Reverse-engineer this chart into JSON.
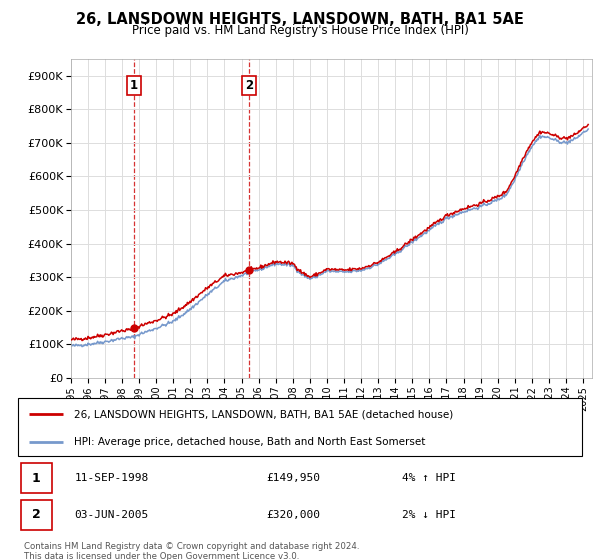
{
  "title": "26, LANSDOWN HEIGHTS, LANSDOWN, BATH, BA1 5AE",
  "subtitle": "Price paid vs. HM Land Registry's House Price Index (HPI)",
  "ylabel_ticks": [
    "£0",
    "£100K",
    "£200K",
    "£300K",
    "£400K",
    "£500K",
    "£600K",
    "£700K",
    "£800K",
    "£900K"
  ],
  "ytick_values": [
    0,
    100000,
    200000,
    300000,
    400000,
    500000,
    600000,
    700000,
    800000,
    900000
  ],
  "ylim": [
    0,
    950000
  ],
  "xlim_start": 1995.0,
  "xlim_end": 2025.5,
  "sale1_x": 1998.69,
  "sale1_y": 149950,
  "sale2_x": 2005.42,
  "sale2_y": 320000,
  "sale1_label": "11-SEP-1998",
  "sale1_price": "£149,950",
  "sale1_hpi": "4% ↑ HPI",
  "sale2_label": "03-JUN-2005",
  "sale2_price": "£320,000",
  "sale2_hpi": "2% ↓ HPI",
  "legend_line1": "26, LANSDOWN HEIGHTS, LANSDOWN, BATH, BA1 5AE (detached house)",
  "legend_line2": "HPI: Average price, detached house, Bath and North East Somerset",
  "footer": "Contains HM Land Registry data © Crown copyright and database right 2024.\nThis data is licensed under the Open Government Licence v3.0.",
  "line_color_red": "#cc0000",
  "line_color_blue": "#7799cc",
  "bg_color": "#ffffff",
  "grid_color": "#dddddd"
}
